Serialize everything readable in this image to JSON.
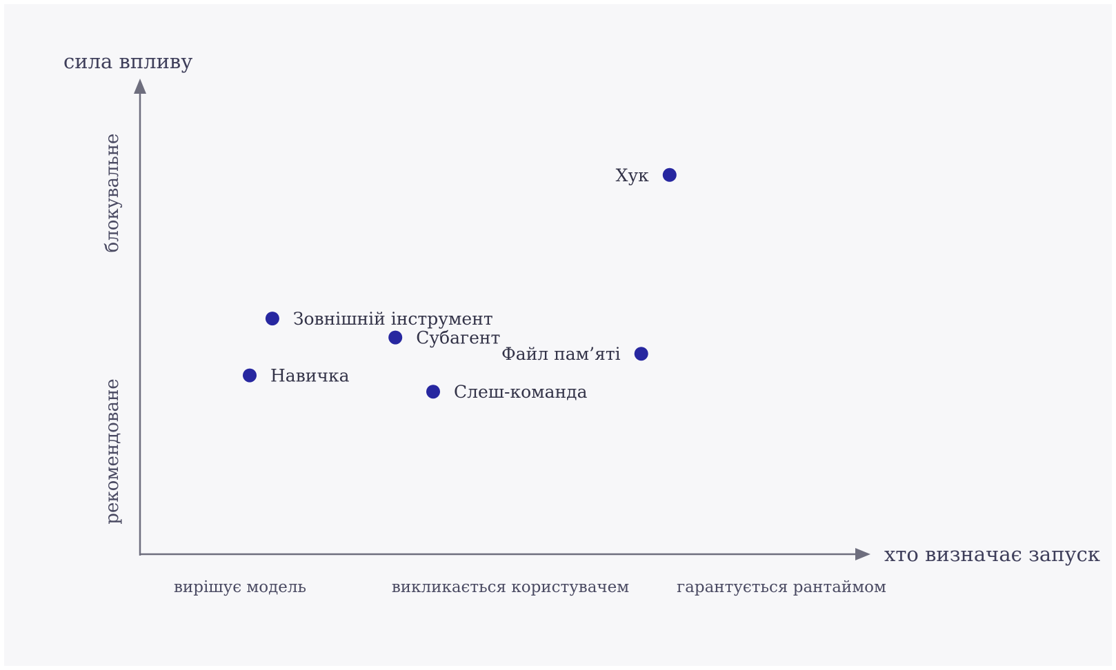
{
  "chart_data": {
    "type": "scatter",
    "xlabel": "хто визначає запуск",
    "ylabel": "сила впливу",
    "x_ticks": [
      "вирішує модель",
      "викликається користувачем",
      "гарантується рантаймом"
    ],
    "y_ticks": [
      "рекомендоване",
      "блокувальне"
    ],
    "xlim": [
      -0.6,
      3.2
    ],
    "ylim": [
      -0.4,
      1.32
    ],
    "grid": false,
    "legend": "none",
    "point_color": "#2727a0",
    "points": [
      {
        "label": "Хук",
        "x": 2.2,
        "y": 1.0,
        "label_side": "left"
      },
      {
        "label": "Зовнішній інструмент",
        "x": 0.1,
        "y": 0.47,
        "label_side": "right"
      },
      {
        "label": "Субагент",
        "x": 0.75,
        "y": 0.4,
        "label_side": "right"
      },
      {
        "label": "Файл пам’яті",
        "x": 2.05,
        "y": 0.34,
        "label_side": "left"
      },
      {
        "label": "Навичка",
        "x": -0.02,
        "y": 0.26,
        "label_side": "right"
      },
      {
        "label": "Слеш-команда",
        "x": 0.95,
        "y": 0.2,
        "label_side": "right"
      }
    ]
  }
}
